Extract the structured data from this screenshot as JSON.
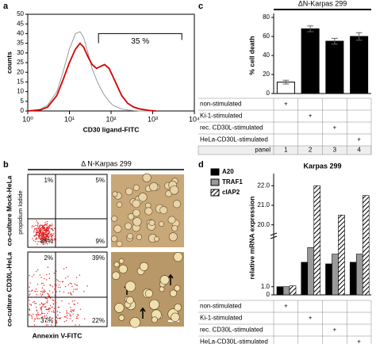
{
  "panel_letters": [
    "a",
    "c",
    "b",
    "d"
  ],
  "chart_data": [
    {
      "type": "line",
      "xlabel": "CD30 ligand-FITC",
      "ylabel": "counts",
      "xlog": true,
      "xlim": [
        1,
        10000
      ],
      "xticks": [
        {
          "value": 1,
          "label": "10⁰"
        },
        {
          "value": 10,
          "label": "10¹"
        },
        {
          "value": 100,
          "label": "10²"
        },
        {
          "value": 1000,
          "label": "10³"
        },
        {
          "value": 10000,
          "label": "10⁴"
        }
      ],
      "ylim": [
        0,
        50
      ],
      "yticks": [
        0,
        5,
        10,
        15,
        20,
        25,
        30,
        35,
        40,
        45,
        50
      ],
      "x": [
        1,
        2,
        3,
        5,
        7,
        10,
        14,
        18,
        22,
        28,
        35,
        45,
        55,
        70,
        90,
        110,
        140,
        180,
        250,
        350,
        500,
        800,
        1200
      ],
      "series": [
        {
          "color": "#999999",
          "values": [
            0,
            1,
            3,
            10,
            20,
            32,
            40,
            41,
            38,
            30,
            22,
            16,
            12,
            8,
            5,
            3,
            2,
            1,
            0.5,
            0.2,
            0,
            0,
            0
          ]
        },
        {
          "color": "#d40000",
          "values": [
            0,
            0.5,
            2,
            8,
            16,
            25,
            32,
            35,
            33,
            28,
            24,
            22,
            23,
            24,
            22,
            18,
            13,
            8,
            4,
            2,
            1,
            0.3,
            0
          ]
        }
      ],
      "gate": {
        "label": "35 %",
        "x": [
          50,
          5000
        ],
        "y": 40
      }
    },
    {
      "type": "bar",
      "title": "ΔN-Karpas 299",
      "ylabel": "% cell death",
      "ylim": [
        0,
        80
      ],
      "yticks": [
        0,
        20,
        40,
        60,
        80
      ],
      "values": [
        12,
        68,
        55,
        60
      ],
      "errors": [
        2,
        3,
        3,
        4
      ],
      "colors": [
        "#ffffff",
        "#000000",
        "#000000",
        "#000000"
      ],
      "table": {
        "rows": [
          "non-stimulated",
          "Ki-1-stimulated",
          "rec. CD30L-stimulated",
          "HeLa-CD30L-stimulated"
        ],
        "cells": [
          [
            "+",
            null,
            null,
            null
          ],
          [
            null,
            "+",
            null,
            null
          ],
          [
            null,
            null,
            "+",
            null
          ],
          [
            null,
            null,
            null,
            "+"
          ]
        ],
        "footer_label": "panel",
        "footer": [
          "1",
          "2",
          "3",
          "4"
        ]
      }
    },
    {
      "type": "grouped-bar",
      "title": "Karpas 299",
      "ylabel": "relative mRNA expression",
      "ylim": [
        0,
        22.5
      ],
      "ybreak": [
        7,
        19.5
      ],
      "yticks": [
        0,
        {
          "value": 1,
          "label": "1.0"
        },
        {
          "value": 20,
          "label": "20.0"
        },
        {
          "value": 21,
          "label": "21.0"
        },
        {
          "value": 22,
          "label": "22.0"
        }
      ],
      "series": [
        {
          "name": "A20",
          "color": "#000000",
          "values": [
            1.0,
            4.0,
            3.8,
            4.0
          ]
        },
        {
          "name": "TRAF1",
          "color": "#999999",
          "values": [
            1.0,
            5.8,
            5.0,
            5.0
          ]
        },
        {
          "name": "cIAP2",
          "color": "#000000",
          "pattern": "hatch",
          "values": [
            1.1,
            22.0,
            20.5,
            21.5
          ]
        }
      ],
      "table": {
        "rows": [
          "non-stimulated",
          "Ki-1-stimulated",
          "rec. CD30L-stimulated",
          "HeLa-CD30L-stimulated"
        ],
        "cells": [
          [
            "+",
            null,
            null,
            null
          ],
          [
            null,
            "+",
            null,
            null
          ],
          [
            null,
            null,
            "+",
            null
          ],
          [
            null,
            null,
            null,
            "+"
          ]
        ],
        "footer_label": "panel",
        "footer": [
          "1",
          "2",
          "3",
          "4"
        ]
      }
    }
  ],
  "panel_b": {
    "title": "Δ N-Karpas 299",
    "rows": [
      "co-culture Mock-HeLa",
      "co-culture CD30L-HeLa"
    ],
    "ylabel": "propidium Iodide",
    "xlabel": "Annexin V-FITC",
    "quadrants": [
      [
        "1%",
        "5%",
        "85%",
        "9%"
      ],
      [
        "2%",
        "39%",
        "37%",
        "22%"
      ]
    ]
  }
}
